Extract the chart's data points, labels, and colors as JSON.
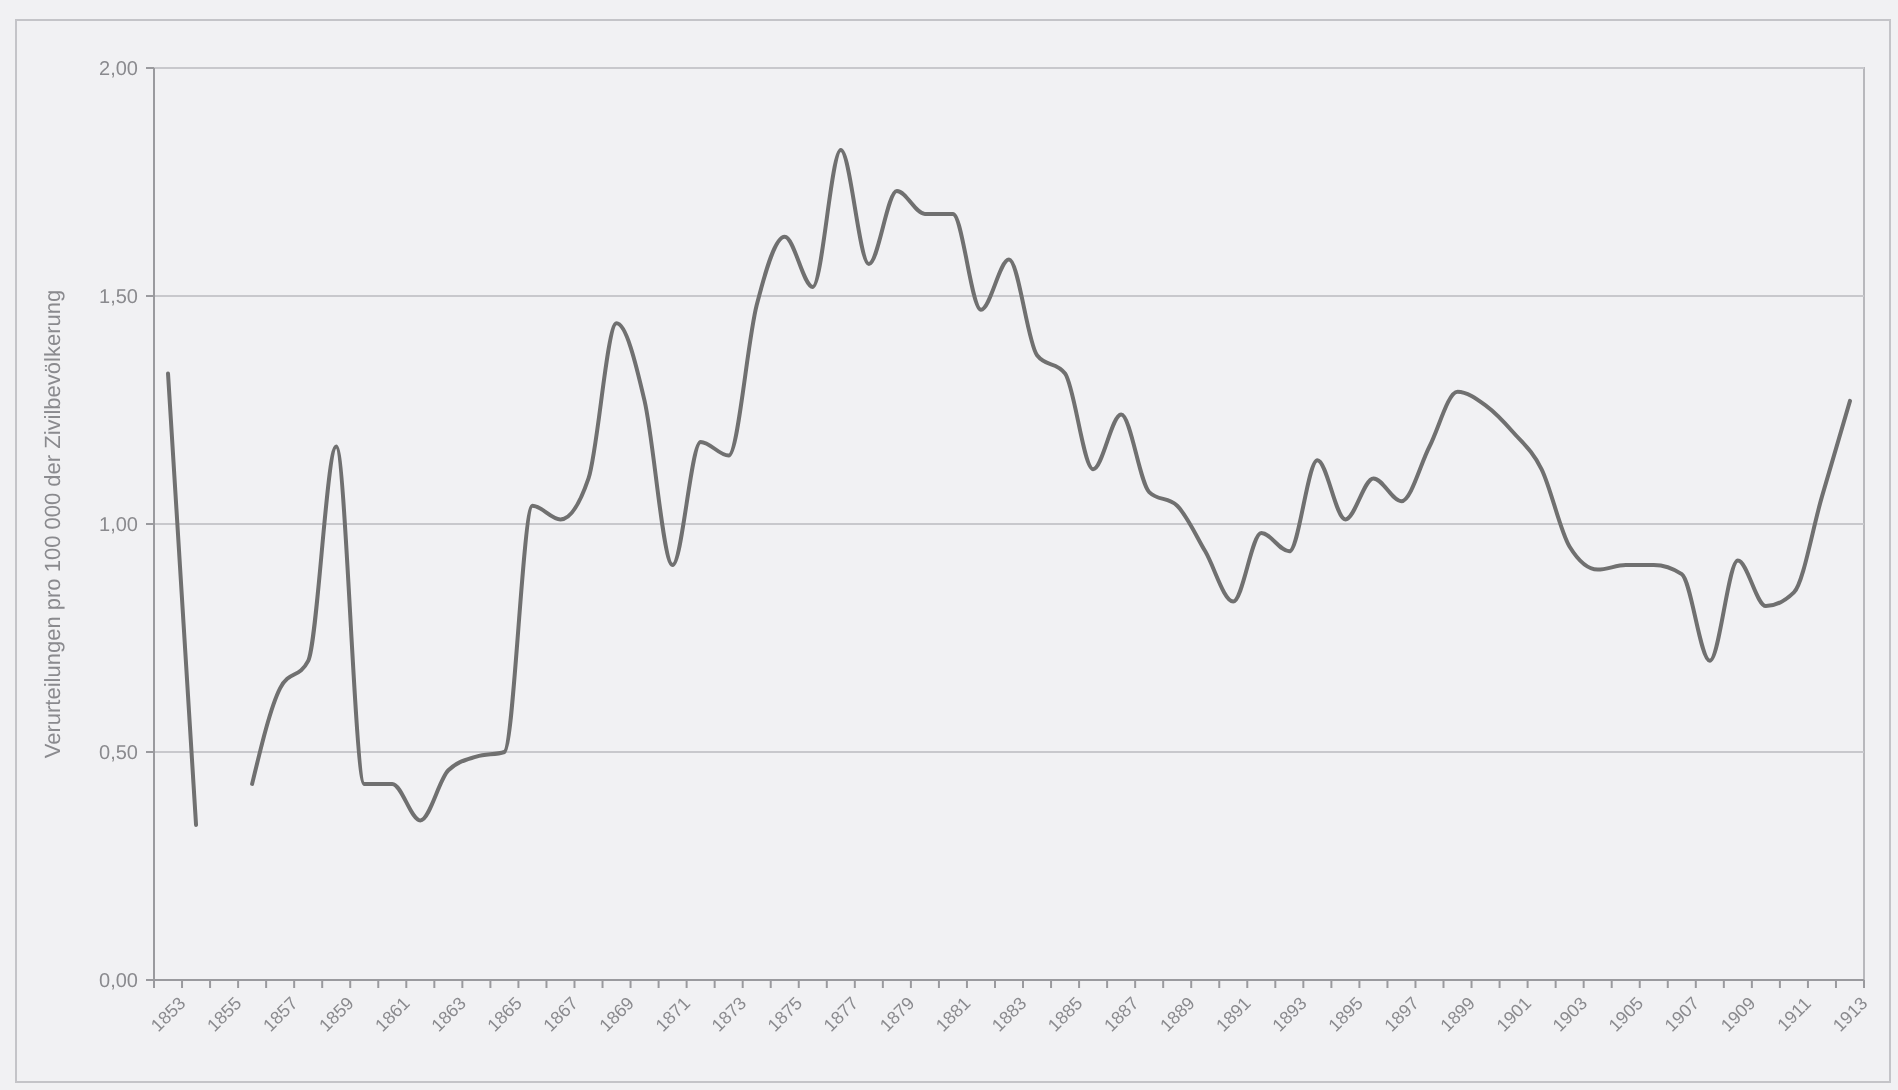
{
  "chart_data": {
    "type": "line",
    "ylabel": "Verurteilungen pro 100 000 der Zivilbevölkerung",
    "categories": [
      "1853",
      null,
      "1855",
      null,
      "1857",
      null,
      "1859",
      null,
      "1861",
      null,
      "1863",
      null,
      "1865",
      null,
      "1867",
      null,
      "1869",
      null,
      "1871",
      null,
      "1873",
      null,
      "1875",
      null,
      "1877",
      null,
      "1879",
      null,
      "1881",
      null,
      "1883",
      null,
      "1885",
      null,
      "1887",
      null,
      "1889",
      null,
      "1891",
      null,
      "1893",
      null,
      "1895",
      null,
      "1897",
      null,
      "1899",
      null,
      "1901",
      null,
      "1903",
      null,
      "1905",
      null,
      "1907",
      null,
      "1909",
      null,
      "1911",
      null,
      "1913"
    ],
    "series": [
      {
        "color": "#707070",
        "values": [
          1.33,
          0.34,
          null,
          0.43,
          0.64,
          0.7,
          1.17,
          0.43,
          0.43,
          0.35,
          0.46,
          0.49,
          0.5,
          1.04,
          1.01,
          1.1,
          1.44,
          1.27,
          0.91,
          1.18,
          1.15,
          1.48,
          1.63,
          1.52,
          1.82,
          1.57,
          1.73,
          1.68,
          1.68,
          1.47,
          1.58,
          1.37,
          1.33,
          1.12,
          1.24,
          1.07,
          1.04,
          0.94,
          0.83,
          0.98,
          0.94,
          1.14,
          1.01,
          1.1,
          1.05,
          1.17,
          1.29,
          1.26,
          1.2,
          1.12,
          0.95,
          0.9,
          0.91,
          0.91,
          0.89,
          0.7,
          0.92,
          0.82,
          0.85,
          1.06,
          1.27
        ]
      }
    ],
    "ylim": [
      0,
      2
    ],
    "yticks": [
      {
        "value": 0,
        "label": "0,00"
      },
      {
        "value": 0.5,
        "label": "0,50"
      },
      {
        "value": 1,
        "label": "1,00"
      },
      {
        "value": 1.5,
        "label": "1,50"
      },
      {
        "value": 2,
        "label": "2,00"
      }
    ],
    "grid": "y",
    "marker": "none",
    "line_style": "solid"
  }
}
